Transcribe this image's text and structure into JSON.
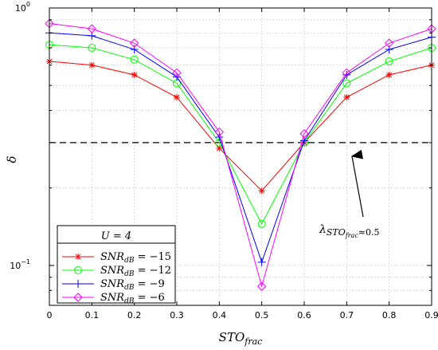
{
  "chart_data": {
    "type": "line",
    "title": "",
    "xlabel": "STO_frac",
    "ylabel": "δ",
    "y_scale": "log",
    "xlim": [
      0,
      0.9
    ],
    "ylim": [
      0.07,
      1.0
    ],
    "x_ticks": [
      "0",
      "0.1",
      "0.2",
      "0.3",
      "0.4",
      "0.5",
      "0.6",
      "0.7",
      "0.8",
      "0.9"
    ],
    "y_ticks": [
      {
        "value": 0.1,
        "base": "10",
        "exp": "−1"
      },
      {
        "value": 1.0,
        "base": "10",
        "exp": "0"
      }
    ],
    "grid": true,
    "legend_position": "bottom-left",
    "legend_title": "U = 4",
    "x": [
      0,
      0.1,
      0.2,
      0.3,
      0.4,
      0.5,
      0.6,
      0.7,
      0.8,
      0.9
    ],
    "series": [
      {
        "name": "−15",
        "color": "#ff0000",
        "marker": "star",
        "values": [
          0.62,
          0.6,
          0.55,
          0.45,
          0.285,
          0.195,
          0.3,
          0.45,
          0.55,
          0.6
        ]
      },
      {
        "name": "−12",
        "color": "#00ff00",
        "marker": "circle",
        "values": [
          0.72,
          0.7,
          0.63,
          0.51,
          0.3,
          0.145,
          0.3,
          0.51,
          0.62,
          0.7
        ]
      },
      {
        "name": "−9",
        "color": "#0000ff",
        "marker": "plus",
        "values": [
          0.8,
          0.78,
          0.69,
          0.54,
          0.315,
          0.103,
          0.305,
          0.55,
          0.69,
          0.77
        ]
      },
      {
        "name": "−6",
        "color": "#ff00ff",
        "marker": "diamond",
        "values": [
          0.87,
          0.83,
          0.73,
          0.56,
          0.33,
          0.083,
          0.325,
          0.56,
          0.73,
          0.83
        ]
      }
    ],
    "reference_line": {
      "y": 0.3,
      "style": "dashed",
      "color": "#000000"
    },
    "annotation": {
      "lambda": "λ",
      "sub": "STO",
      "subsub": "frac",
      "tail": "≈0.5"
    },
    "legend_var": {
      "main": "SNR",
      "sub": "dB"
    }
  }
}
